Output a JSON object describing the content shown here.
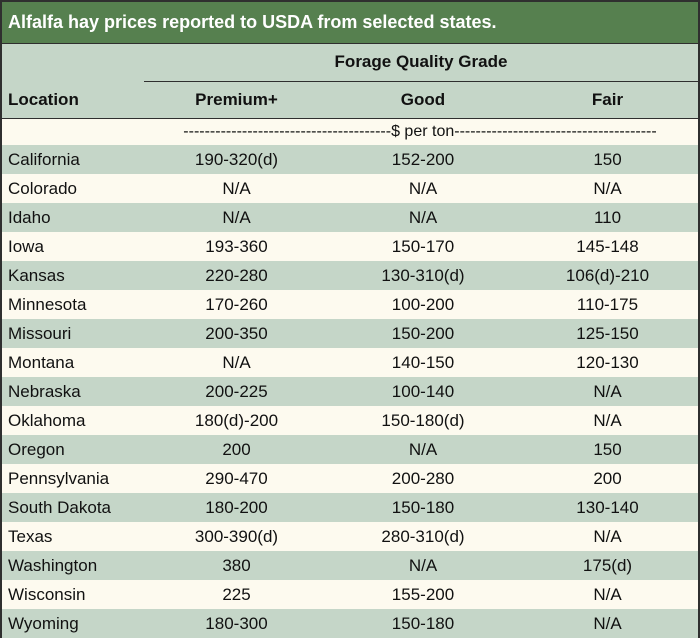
{
  "title": "Alfalfa hay prices reported to USDA from selected states.",
  "header": {
    "group_title": "Forage Quality Grade",
    "location": "Location",
    "premium": "Premium+",
    "good": "Good",
    "fair": "Fair"
  },
  "unit_row": "---------------------------------------$ per ton--------------------------------------",
  "rows": [
    {
      "location": "California",
      "premium": "190-320(d)",
      "good": "152-200",
      "fair": "150"
    },
    {
      "location": "Colorado",
      "premium": "N/A",
      "good": "N/A",
      "fair": "N/A"
    },
    {
      "location": "Idaho",
      "premium": "N/A",
      "good": "N/A",
      "fair": "110"
    },
    {
      "location": "Iowa",
      "premium": "193-360",
      "good": "150-170",
      "fair": "145-148"
    },
    {
      "location": "Kansas",
      "premium": "220-280",
      "good": "130-310(d)",
      "fair": "106(d)-210"
    },
    {
      "location": "Minnesota",
      "premium": "170-260",
      "good": "100-200",
      "fair": "110-175"
    },
    {
      "location": "Missouri",
      "premium": "200-350",
      "good": "150-200",
      "fair": "125-150"
    },
    {
      "location": "Montana",
      "premium": "N/A",
      "good": "140-150",
      "fair": "120-130"
    },
    {
      "location": "Nebraska",
      "premium": "200-225",
      "good": "100-140",
      "fair": "N/A"
    },
    {
      "location": "Oklahoma",
      "premium": "180(d)-200",
      "good": "150-180(d)",
      "fair": "N/A"
    },
    {
      "location": "Oregon",
      "premium": "200",
      "good": "N/A",
      "fair": "150"
    },
    {
      "location": "Pennsylvania",
      "premium": "290-470",
      "good": "200-280",
      "fair": "200"
    },
    {
      "location": "South Dakota",
      "premium": "180-200",
      "good": "150-180",
      "fair": "130-140"
    },
    {
      "location": "Texas",
      "premium": "300-390(d)",
      "good": "280-310(d)",
      "fair": "N/A"
    },
    {
      "location": "Washington",
      "premium": "380",
      "good": "N/A",
      "fair": "175(d)"
    },
    {
      "location": "Wisconsin",
      "premium": "225",
      "good": "155-200",
      "fair": "N/A"
    },
    {
      "location": "Wyoming",
      "premium": "180-300",
      "good": "150-180",
      "fair": "N/A"
    }
  ]
}
